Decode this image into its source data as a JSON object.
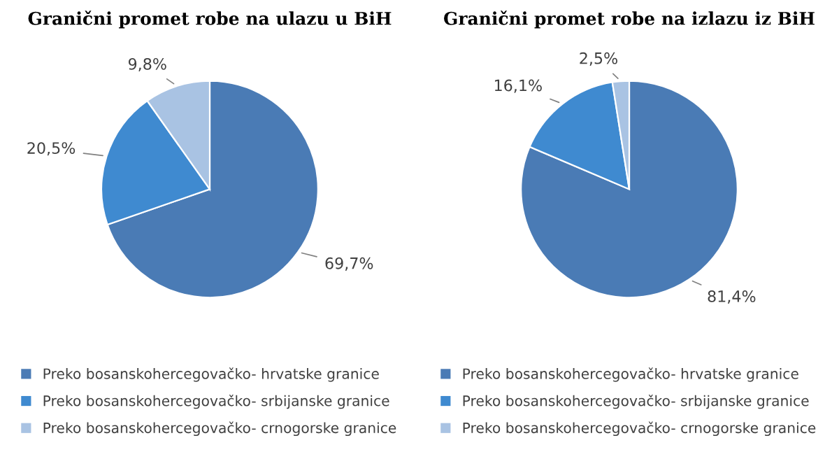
{
  "chart_data": [
    {
      "type": "pie",
      "title": "Granični promet robe na ulazu u BiH",
      "categories": [
        "Preko bosanskohercegovačko- hrvatske granice",
        "Preko bosanskohercegovačko- srbijanske granice",
        "Preko bosanskohercegovačko- crnogorske granice"
      ],
      "values": [
        69.7,
        20.5,
        9.8
      ],
      "value_labels": [
        "69,7%",
        "20,5%",
        "9,8%"
      ],
      "colors": [
        "#4a7bb5",
        "#3f8ad0",
        "#a9c3e3"
      ],
      "legend": "bottom"
    },
    {
      "type": "pie",
      "title": "Granični promet robe na izlazu iz BiH",
      "categories": [
        "Preko bosanskohercegovačko- hrvatske granice",
        "Preko bosanskohercegovačko- srbijanske granice",
        "Preko bosanskohercegovačko- crnogorske granice"
      ],
      "values": [
        81.4,
        16.1,
        2.5
      ],
      "value_labels": [
        "81,4%",
        "16,1%",
        "2,5%"
      ],
      "colors": [
        "#4a7bb5",
        "#3f8ad0",
        "#a9c3e3"
      ],
      "legend": "bottom"
    }
  ]
}
